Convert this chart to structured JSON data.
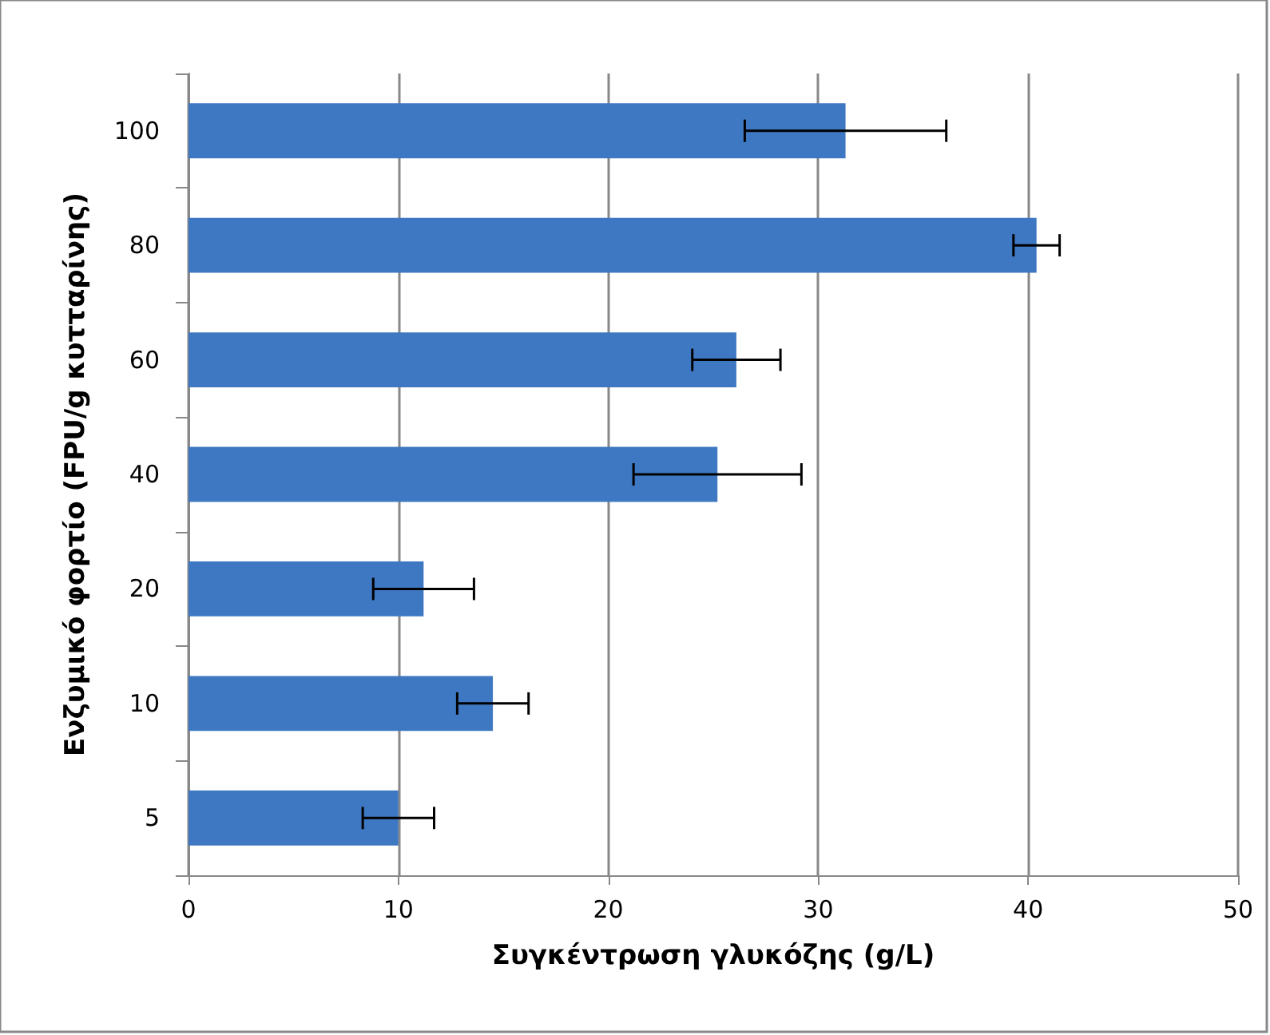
{
  "chart_data": {
    "type": "bar",
    "orientation": "horizontal",
    "xlabel": "Συγκέντρωση γλυκόζης (g/L)",
    "ylabel": "Ενζυμικό φορτίο (FPU/g κυτταρίνης)",
    "categories": [
      "100",
      "80",
      "60",
      "40",
      "20",
      "10",
      "5"
    ],
    "values": [
      31.3,
      40.4,
      26.1,
      25.2,
      11.2,
      14.5,
      10.0
    ],
    "errors": [
      4.8,
      1.1,
      2.1,
      4.0,
      2.4,
      1.7,
      1.7
    ],
    "color": "#3f78c2",
    "xlim": [
      0,
      50
    ],
    "xticks": [
      0,
      10,
      20,
      30,
      40,
      50
    ],
    "grid": "x"
  }
}
